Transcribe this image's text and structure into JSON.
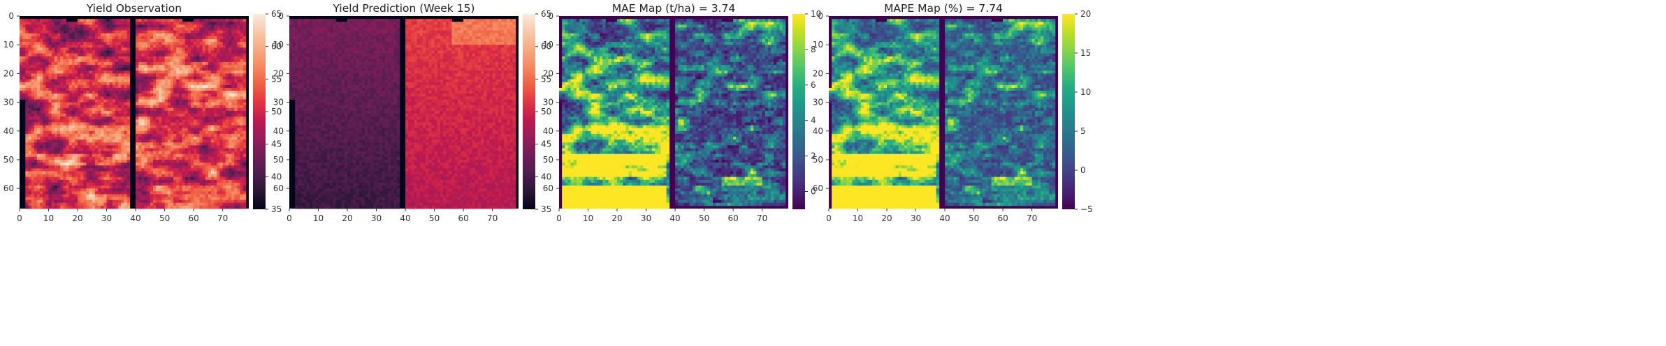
{
  "chart_data": [
    {
      "type": "heatmap",
      "title": "Yield Observation",
      "colormap": "rocket",
      "xlim": [
        0,
        79
      ],
      "ylim": [
        67,
        0
      ],
      "x_ticks": [
        0,
        10,
        20,
        30,
        40,
        50,
        60,
        70
      ],
      "y_ticks": [
        0,
        10,
        20,
        30,
        40,
        50,
        60
      ],
      "colorbar": {
        "min": 35,
        "max": 65,
        "ticks": [
          35,
          40,
          45,
          50,
          55,
          60,
          65
        ]
      }
    },
    {
      "type": "heatmap",
      "title": "Yield Prediction (Week 15)",
      "colormap": "rocket",
      "xlim": [
        0,
        79
      ],
      "ylim": [
        67,
        0
      ],
      "x_ticks": [
        0,
        10,
        20,
        30,
        40,
        50,
        60,
        70
      ],
      "y_ticks": [
        0,
        10,
        20,
        30,
        40,
        50,
        60
      ],
      "colorbar": {
        "min": 35,
        "max": 65,
        "ticks": [
          35,
          40,
          45,
          50,
          55,
          60,
          65
        ]
      }
    },
    {
      "type": "heatmap",
      "title": "MAE Map (t/ha) = 3.74",
      "colormap": "viridis",
      "xlim": [
        0,
        79
      ],
      "ylim": [
        67,
        0
      ],
      "x_ticks": [
        0,
        10,
        20,
        30,
        40,
        50,
        60,
        70
      ],
      "y_ticks": [
        0,
        10,
        20,
        30,
        40,
        50,
        60
      ],
      "colorbar": {
        "min": -1,
        "max": 10,
        "ticks": [
          0,
          2,
          4,
          6,
          8,
          10
        ]
      }
    },
    {
      "type": "heatmap",
      "title": "MAPE Map (%) = 7.74",
      "colormap": "viridis",
      "xlim": [
        0,
        79
      ],
      "ylim": [
        67,
        0
      ],
      "x_ticks": [
        0,
        10,
        20,
        30,
        40,
        50,
        60,
        70
      ],
      "y_ticks": [
        0,
        10,
        20,
        30,
        40,
        50,
        60
      ],
      "colorbar": {
        "min": -5,
        "max": 20,
        "ticks": [
          -5,
          0,
          5,
          10,
          15,
          20
        ]
      }
    }
  ]
}
